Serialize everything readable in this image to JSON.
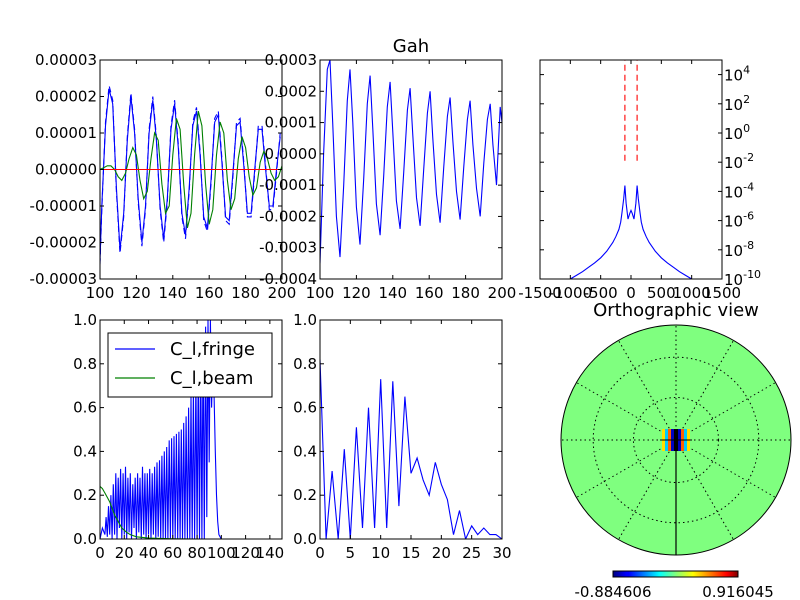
{
  "chart_data": [
    {
      "panel": "top-left",
      "type": "line",
      "title": "",
      "xlim": [
        100,
        200
      ],
      "ylim": [
        -3e-05,
        3e-05
      ],
      "xticks": [
        100,
        120,
        140,
        160,
        180,
        200
      ],
      "yticks": [
        "-0.00003",
        "-0.00002",
        "-0.00001",
        "0.00000",
        "0.00001",
        "0.00002",
        "0.00003"
      ],
      "series": [
        {
          "color": "#0000ff",
          "style": "solid",
          "x": [
            100,
            101,
            103,
            105,
            107,
            109,
            111,
            113,
            115,
            117,
            119,
            121,
            123,
            125,
            127,
            129,
            131,
            133,
            135,
            137,
            139,
            141,
            143,
            145,
            147,
            149,
            151,
            153,
            155,
            157,
            159,
            161,
            163,
            165,
            167,
            169,
            171,
            173,
            175,
            177,
            179,
            181,
            183,
            185,
            187,
            189,
            191,
            193,
            195,
            197,
            199
          ],
          "y": [
            -2.5e-05,
            -1e-05,
            1.2e-05,
            2.2e-05,
            1.8e-05,
            -5e-06,
            -2.2e-05,
            -1.2e-05,
            8e-06,
            2e-05,
            1e-05,
            -8e-06,
            -2e-05,
            -1e-05,
            1e-05,
            1.9e-05,
            8e-06,
            -1e-05,
            -1.9e-05,
            -8e-06,
            1.1e-05,
            1.8e-05,
            6e-06,
            -1.2e-05,
            -1.8e-05,
            -5e-06,
            1.2e-05,
            1.6e-05,
            4e-06,
            -1.3e-05,
            -1.6e-05,
            -3e-06,
            1.3e-05,
            1.5e-05,
            2e-06,
            -1.3e-05,
            -1.4e-05,
            -1e-06,
            1.2e-05,
            1.3e-05,
            1e-06,
            -1.2e-05,
            -1.2e-05,
            0.0,
            1.1e-05,
            1.1e-05,
            0.0,
            -1e-05,
            -1e-05,
            0.0,
            9e-06
          ]
        },
        {
          "color": "#0000ff",
          "style": "dashed",
          "x": [
            100,
            101,
            103,
            105,
            107,
            109,
            111,
            113,
            115,
            117,
            119,
            121,
            123,
            125,
            127,
            129,
            131,
            133,
            135,
            137,
            139,
            141,
            143,
            145,
            147,
            149,
            151,
            153,
            155,
            157,
            159,
            161,
            163,
            165,
            167,
            169,
            171,
            173,
            175,
            177,
            179,
            181,
            183,
            185,
            187,
            189,
            191,
            193,
            195,
            197,
            199
          ],
          "y": [
            -2.6e-05,
            -1.1e-05,
            1.3e-05,
            2.3e-05,
            1.9e-05,
            -6e-06,
            -2.3e-05,
            -1.3e-05,
            9e-06,
            2.1e-05,
            1.1e-05,
            -9e-06,
            -2.1e-05,
            -1.1e-05,
            1.1e-05,
            2e-05,
            9e-06,
            -1.1e-05,
            -2e-05,
            -9e-06,
            1.2e-05,
            1.9e-05,
            7e-06,
            -1.3e-05,
            -1.9e-05,
            -6e-06,
            1.3e-05,
            1.7e-05,
            5e-06,
            -1.4e-05,
            -1.7e-05,
            -4e-06,
            1.4e-05,
            1.6e-05,
            3e-06,
            -1.4e-05,
            -1.5e-05,
            -2e-06,
            1.3e-05,
            1.4e-05,
            2e-06,
            -1.3e-05,
            -1.3e-05,
            -1e-06,
            1.2e-05,
            1.2e-05,
            1e-06,
            -1.1e-05,
            -1.1e-05,
            -1e-06,
            1e-05
          ]
        },
        {
          "color": "#008000",
          "style": "solid",
          "x": [
            100,
            102,
            104,
            106,
            108,
            110,
            112,
            114,
            116,
            118,
            120,
            122,
            124,
            126,
            128,
            130,
            132,
            134,
            136,
            138,
            140,
            142,
            144,
            146,
            148,
            150,
            152,
            154,
            156,
            158,
            160,
            162,
            164,
            166,
            168,
            170,
            172,
            174,
            176,
            178,
            180,
            182,
            184,
            186,
            188,
            190,
            192,
            194,
            196,
            198,
            200
          ],
          "y": [
            0.0,
            5e-07,
            1e-06,
            1e-06,
            0.0,
            -2e-06,
            -3e-06,
            -1e-06,
            3e-06,
            6e-06,
            4e-06,
            -3e-06,
            -8e-06,
            -6e-06,
            3e-06,
            1e-05,
            8e-06,
            -4e-06,
            -1.2e-05,
            -1e-05,
            4e-06,
            1.4e-05,
            1.1e-05,
            -4e-06,
            -1.6e-05,
            -1.2e-05,
            4e-06,
            1.6e-05,
            1.2e-05,
            -4e-06,
            -1.5e-05,
            -1.1e-05,
            4e-06,
            1.3e-05,
            1e-05,
            -3e-06,
            -1.1e-05,
            -8e-06,
            3e-06,
            9e-06,
            6e-06,
            -2e-06,
            -7e-06,
            -5e-06,
            2e-06,
            5e-06,
            3e-06,
            -1e-06,
            -3e-06,
            -2e-06,
            1e-06
          ]
        },
        {
          "color": "#ff0000",
          "style": "solid",
          "x": [
            100,
            200
          ],
          "y": [
            0.0,
            0.0
          ]
        }
      ]
    },
    {
      "panel": "top-middle",
      "type": "line",
      "title": "Gah",
      "xlim": [
        100,
        200
      ],
      "ylim": [
        -0.0004,
        0.0003
      ],
      "xticks": [
        100,
        120,
        140,
        160,
        180,
        200
      ],
      "yticks": [
        "-0.0004",
        "-0.0003",
        "-0.0002",
        "-0.0001",
        "0.0000",
        "0.0001",
        "0.0002",
        "0.0003"
      ],
      "series": [
        {
          "color": "#0000ff",
          "style": "solid",
          "x": [
            100,
            102,
            104,
            105.5,
            107,
            109,
            111,
            113,
            115,
            116.5,
            118,
            120,
            122,
            124,
            126,
            127.5,
            129,
            131,
            133,
            135,
            137,
            138.5,
            140,
            142,
            144,
            146,
            148,
            149.5,
            151,
            153,
            155,
            157,
            159,
            160.5,
            162,
            164,
            166,
            168,
            170,
            171.5,
            173,
            175,
            177,
            179,
            181,
            182.5,
            184,
            186,
            188,
            190,
            192,
            193.5,
            195,
            197,
            199,
            200
          ],
          "y": [
            -0.00035,
            0.0,
            0.00027,
            0.0003,
            0.0001,
            -0.0002,
            -0.00033,
            -0.0001,
            0.00017,
            0.00027,
            0.0001,
            -0.00017,
            -0.00029,
            -8e-05,
            0.00016,
            0.00025,
            8e-05,
            -0.00016,
            -0.00026,
            -7e-05,
            0.00015,
            0.00023,
            7e-05,
            -0.00015,
            -0.00024,
            -6e-05,
            0.00014,
            0.00021,
            6e-05,
            -0.00014,
            -0.00023,
            -5e-05,
            0.00013,
            0.0002,
            5e-05,
            -0.00013,
            -0.00022,
            -4e-05,
            0.00012,
            0.00018,
            4e-05,
            -0.00012,
            -0.00021,
            -4e-05,
            0.00011,
            0.00017,
            3e-05,
            -0.00011,
            -0.0002,
            -3e-05,
            0.00011,
            0.00016,
            3e-05,
            -0.0001,
            0.00015,
            0.0001
          ]
        }
      ]
    },
    {
      "panel": "top-right",
      "type": "line",
      "title": "",
      "yscale": "log",
      "xlim": [
        -1500,
        1500
      ],
      "ylim_exp": [
        -10,
        5
      ],
      "xticks": [
        "-1500",
        "-1000",
        "-500",
        "0",
        "500",
        "1000",
        "1500"
      ],
      "yticks": [
        {
          "exp": -10,
          "base": "10",
          "sup": "-10"
        },
        {
          "exp": -8,
          "base": "10",
          "sup": "-8"
        },
        {
          "exp": -6,
          "base": "10",
          "sup": "-6"
        },
        {
          "exp": -4,
          "base": "10",
          "sup": "-4"
        },
        {
          "exp": -2,
          "base": "10",
          "sup": "-2"
        },
        {
          "exp": 0,
          "base": "10",
          "sup": "0"
        },
        {
          "exp": 2,
          "base": "10",
          "sup": "2"
        },
        {
          "exp": 4,
          "base": "10",
          "sup": "4"
        }
      ],
      "series": [
        {
          "color": "#0000ff",
          "style": "solid",
          "x": [
            -1000,
            -900,
            -800,
            -700,
            -600,
            -500,
            -400,
            -300,
            -250,
            -200,
            -170,
            -150,
            -120,
            -100,
            -80,
            -50,
            -20,
            0,
            20,
            50,
            80,
            100,
            120,
            150,
            170,
            200,
            250,
            300,
            400,
            500,
            600,
            700,
            800,
            900,
            1000
          ],
          "y_exp": [
            -10,
            -9.75,
            -9.5,
            -9.2,
            -8.9,
            -8.55,
            -8.1,
            -7.5,
            -7.1,
            -6.6,
            -6.1,
            -5.5,
            -4.5,
            -3.6,
            -4.8,
            -5.9,
            -5.5,
            -5.3,
            -5.5,
            -5.9,
            -4.8,
            -3.6,
            -4.5,
            -5.5,
            -6.1,
            -6.6,
            -7.1,
            -7.5,
            -8.1,
            -8.55,
            -8.9,
            -9.2,
            -9.5,
            -9.75,
            -10
          ]
        },
        {
          "color": "#ff0000",
          "style": "dashed",
          "x": [
            -100,
            -100
          ],
          "y_exp": [
            -1.9,
            5
          ]
        },
        {
          "color": "#ff0000",
          "style": "dashed",
          "x": [
            100,
            100
          ],
          "y_exp": [
            -1.9,
            5
          ]
        }
      ]
    },
    {
      "panel": "bottom-left",
      "type": "line",
      "title": "",
      "xlim": [
        0,
        150
      ],
      "ylim": [
        0,
        1
      ],
      "xticks": [
        0,
        20,
        40,
        60,
        80,
        100,
        120,
        140
      ],
      "yticks": [
        "0.0",
        "0.2",
        "0.4",
        "0.6",
        "0.8",
        "1.0"
      ],
      "legend": {
        "placement": "upper-left",
        "entries": [
          "C_l,fringe",
          "C_l,beam"
        ]
      },
      "series": [
        {
          "name": "C_l,fringe",
          "color": "#0000ff",
          "style": "solid",
          "x": [
            0,
            2,
            4,
            5,
            6,
            7,
            8,
            9,
            10,
            11,
            12,
            13,
            14,
            15,
            16,
            17,
            18,
            19,
            20,
            21,
            22,
            23,
            24,
            25,
            26,
            27,
            28,
            29,
            30,
            31,
            32,
            33,
            34,
            35,
            36,
            37,
            38,
            39,
            40,
            41,
            42,
            43,
            44,
            45,
            46,
            47,
            48,
            49,
            50,
            51,
            52,
            53,
            54,
            55,
            56,
            57,
            58,
            59,
            60,
            61,
            62,
            63,
            64,
            65,
            66,
            67,
            68,
            69,
            70,
            71,
            72,
            73,
            74,
            75,
            76,
            77,
            78,
            79,
            80,
            81,
            82,
            83,
            84,
            85,
            86,
            87,
            88,
            89,
            90,
            91,
            92,
            93,
            94,
            95,
            96,
            97,
            98,
            99,
            100,
            102,
            105,
            110,
            150
          ],
          "y": [
            0.0,
            0.05,
            0.02,
            0.1,
            0.01,
            0.15,
            0.02,
            0.2,
            0.0,
            0.25,
            0.02,
            0.3,
            0.0,
            0.28,
            0.05,
            0.32,
            0.0,
            0.3,
            0.02,
            0.33,
            0.0,
            0.28,
            0.03,
            0.3,
            0.0,
            0.25,
            0.05,
            0.28,
            0.0,
            0.3,
            0.03,
            0.28,
            0.0,
            0.33,
            0.02,
            0.3,
            0.0,
            0.3,
            0.02,
            0.32,
            0.0,
            0.3,
            0.02,
            0.33,
            0.0,
            0.35,
            0.01,
            0.36,
            0.0,
            0.38,
            0.0,
            0.4,
            0.0,
            0.42,
            0.0,
            0.45,
            0.0,
            0.46,
            0.0,
            0.47,
            0.0,
            0.48,
            0.0,
            0.49,
            0.0,
            0.5,
            0.0,
            0.53,
            0.0,
            0.56,
            0.0,
            0.6,
            0.0,
            0.65,
            0.0,
            0.7,
            0.0,
            0.75,
            0.0,
            0.82,
            0.0,
            0.88,
            0.0,
            0.93,
            0.0,
            0.97,
            0.1,
            1.0,
            0.35,
            1.0,
            0.6,
            0.85,
            0.65,
            0.4,
            0.2,
            0.08,
            0.02,
            0.01,
            0.0,
            0.0,
            0.0,
            0.0,
            0.0
          ]
        },
        {
          "name": "C_l,beam",
          "color": "#008000",
          "style": "solid",
          "x": [
            0,
            2,
            4,
            6,
            8,
            10,
            12,
            14,
            16,
            18,
            20,
            22,
            25,
            30,
            40,
            60,
            80,
            100,
            120,
            150
          ],
          "y": [
            0.24,
            0.23,
            0.21,
            0.19,
            0.17,
            0.14,
            0.11,
            0.09,
            0.07,
            0.05,
            0.04,
            0.03,
            0.02,
            0.01,
            0.004,
            0.001,
            0.0,
            0.0,
            0.0,
            0.0
          ]
        }
      ]
    },
    {
      "panel": "bottom-middle",
      "type": "line",
      "title": "",
      "xlim": [
        0,
        30
      ],
      "ylim": [
        0,
        1
      ],
      "xticks": [
        0,
        5,
        10,
        15,
        20,
        25,
        30
      ],
      "yticks": [
        "0.0",
        "0.2",
        "0.4",
        "0.6",
        "0.8",
        "1.0"
      ],
      "series": [
        {
          "color": "#0000ff",
          "style": "solid",
          "x": [
            0,
            1,
            2,
            3,
            4,
            5,
            6,
            7,
            8,
            9,
            10,
            11,
            12,
            13,
            14,
            15,
            16,
            17,
            18,
            19,
            20,
            21,
            22,
            23,
            24,
            25,
            26,
            27,
            28,
            29,
            30
          ],
          "y": [
            0.82,
            0.0,
            0.31,
            0.0,
            0.41,
            0.0,
            0.51,
            0.05,
            0.6,
            0.05,
            0.73,
            0.05,
            0.72,
            0.15,
            0.65,
            0.3,
            0.37,
            0.27,
            0.2,
            0.35,
            0.25,
            0.18,
            0.02,
            0.13,
            0.0,
            0.06,
            0.02,
            0.05,
            0.02,
            0.02,
            0.0
          ]
        }
      ]
    },
    {
      "panel": "bottom-right",
      "type": "heatmap",
      "title": "Orthographic view",
      "colorbar": {
        "min_label": "-0.884606",
        "max_label": "0.916045",
        "min": -0.884606,
        "max": 0.916045
      },
      "background_color": "#7fff7f",
      "graticule": {
        "parallels": "dotted",
        "meridians": "dotted"
      }
    }
  ]
}
